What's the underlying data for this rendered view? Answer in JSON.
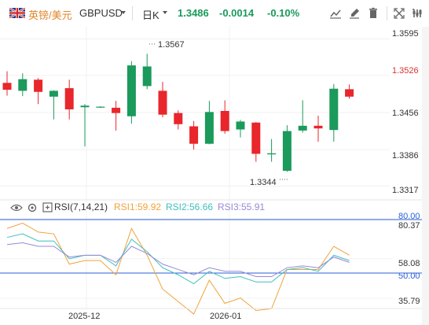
{
  "header": {
    "pair_name": "英镑/美元",
    "symbol": "GBPUSD",
    "period": "日K",
    "price": "1.3486",
    "change": "-0.0014",
    "change_pct": "-0.10%"
  },
  "toolbar_icons": [
    "line-tool-icon",
    "brush-icon",
    "delete-icon",
    "compare-icon",
    "fullscreen-icon",
    "settings-icon"
  ],
  "price_axis": {
    "ticks": [
      "1.3595",
      "1.3526",
      "1.3456",
      "1.3386",
      "1.3317"
    ],
    "current_tick": "1.3526"
  },
  "annotations": {
    "high": "1.3567",
    "low": "1.3344"
  },
  "time_axis": [
    "2025-12",
    "2026-01"
  ],
  "colors": {
    "up": "#1a9a5b",
    "down": "#e8262b",
    "rsi1": "#f0a33a",
    "rsi2": "#3fbfbf",
    "rsi3": "#9a88d8",
    "level_line": "#2a5fd6",
    "quote": "#1a9a5b"
  },
  "chart_data": {
    "type": "candlestick",
    "ylim": [
      1.3297,
      1.3615
    ],
    "candles": [
      {
        "o": 1.3512,
        "h": 1.3534,
        "l": 1.3488,
        "c": 1.3499
      },
      {
        "o": 1.3497,
        "h": 1.353,
        "l": 1.3487,
        "c": 1.3519
      },
      {
        "o": 1.3518,
        "h": 1.3521,
        "l": 1.3472,
        "c": 1.3495
      },
      {
        "o": 1.3486,
        "h": 1.3498,
        "l": 1.3443,
        "c": 1.3497
      },
      {
        "o": 1.3502,
        "h": 1.3518,
        "l": 1.3443,
        "c": 1.3462
      },
      {
        "o": 1.3466,
        "h": 1.3472,
        "l": 1.3392,
        "c": 1.3469
      },
      {
        "o": 1.3467,
        "h": 1.3468,
        "l": 1.3465,
        "c": 1.3467
      },
      {
        "o": 1.3465,
        "h": 1.3478,
        "l": 1.3422,
        "c": 1.3455
      },
      {
        "o": 1.3449,
        "h": 1.3553,
        "l": 1.3435,
        "c": 1.3545
      },
      {
        "o": 1.3506,
        "h": 1.3567,
        "l": 1.35,
        "c": 1.3543
      },
      {
        "o": 1.3497,
        "h": 1.3514,
        "l": 1.3447,
        "c": 1.3452
      },
      {
        "o": 1.3455,
        "h": 1.346,
        "l": 1.3424,
        "c": 1.3434
      },
      {
        "o": 1.343,
        "h": 1.344,
        "l": 1.3386,
        "c": 1.3397
      },
      {
        "o": 1.3397,
        "h": 1.3478,
        "l": 1.3396,
        "c": 1.3457
      },
      {
        "o": 1.3459,
        "h": 1.3479,
        "l": 1.3416,
        "c": 1.3421
      },
      {
        "o": 1.3424,
        "h": 1.3442,
        "l": 1.3409,
        "c": 1.3439
      },
      {
        "o": 1.3437,
        "h": 1.3438,
        "l": 1.3363,
        "c": 1.3378
      },
      {
        "o": 1.3377,
        "h": 1.3406,
        "l": 1.3363,
        "c": 1.3379
      },
      {
        "o": 1.3346,
        "h": 1.3432,
        "l": 1.3344,
        "c": 1.3421
      },
      {
        "o": 1.3422,
        "h": 1.3479,
        "l": 1.3418,
        "c": 1.3431
      },
      {
        "o": 1.3431,
        "h": 1.345,
        "l": 1.3401,
        "c": 1.3426
      },
      {
        "o": 1.3423,
        "h": 1.351,
        "l": 1.3401,
        "c": 1.3501
      },
      {
        "o": 1.35,
        "h": 1.3509,
        "l": 1.3482,
        "c": 1.3486
      }
    ],
    "rsi": {
      "title": "RSI(7,14,21)",
      "rsi1_label": "RSI1:59.92",
      "rsi2_label": "RSI2:56.66",
      "rsi3_label": "RSI3:55.91",
      "ticks": [
        "80.37",
        "58.08",
        "35.79"
      ],
      "levels": [
        "80.00",
        "50.00"
      ],
      "ylim": [
        31,
        84
      ],
      "rsi1": [
        75,
        78,
        73,
        72,
        55,
        57,
        57,
        49,
        75,
        60,
        41,
        34,
        27,
        46,
        33,
        36,
        29,
        30,
        52,
        52,
        52,
        65,
        60
      ],
      "rsi2": [
        70,
        72,
        68,
        68,
        58,
        60,
        60,
        54,
        69,
        62,
        53,
        49,
        44,
        51,
        47,
        48,
        45,
        45,
        52,
        53,
        51,
        60,
        57
      ],
      "rsi3": [
        66,
        67,
        65,
        65,
        59,
        60,
        60,
        56,
        65,
        61,
        55,
        52,
        49,
        53,
        51,
        51,
        48,
        48,
        53,
        54,
        53,
        59,
        56
      ]
    }
  }
}
